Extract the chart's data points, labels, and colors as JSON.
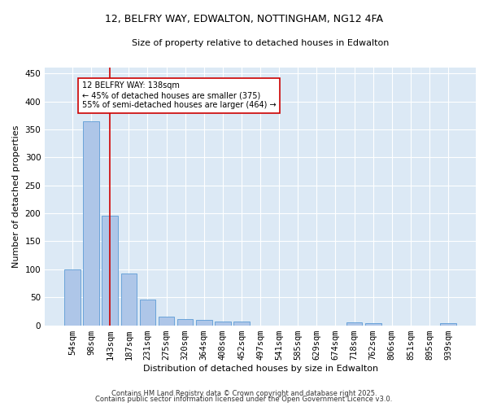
{
  "title": "12, BELFRY WAY, EDWALTON, NOTTINGHAM, NG12 4FA",
  "subtitle": "Size of property relative to detached houses in Edwalton",
  "xlabel": "Distribution of detached houses by size in Edwalton",
  "ylabel": "Number of detached properties",
  "categories": [
    "54sqm",
    "98sqm",
    "143sqm",
    "187sqm",
    "231sqm",
    "275sqm",
    "320sqm",
    "364sqm",
    "408sqm",
    "452sqm",
    "497sqm",
    "541sqm",
    "585sqm",
    "629sqm",
    "674sqm",
    "718sqm",
    "762sqm",
    "806sqm",
    "851sqm",
    "895sqm",
    "939sqm"
  ],
  "values": [
    100,
    365,
    195,
    93,
    46,
    15,
    11,
    10,
    7,
    6,
    0,
    0,
    0,
    0,
    0,
    5,
    4,
    0,
    0,
    0,
    4
  ],
  "bar_color": "#aec6e8",
  "bar_edge_color": "#5b9bd5",
  "vline_x": 2,
  "vline_color": "#cc0000",
  "annotation_line1": "12 BELFRY WAY: 138sqm",
  "annotation_line2": "← 45% of detached houses are smaller (375)",
  "annotation_line3": "55% of semi-detached houses are larger (464) →",
  "annotation_box_color": "#ffffff",
  "annotation_box_edge": "#cc0000",
  "ylim": [
    0,
    460
  ],
  "yticks": [
    0,
    50,
    100,
    150,
    200,
    250,
    300,
    350,
    400,
    450
  ],
  "background_color": "#dce9f5",
  "footer_line1": "Contains HM Land Registry data © Crown copyright and database right 2025.",
  "footer_line2": "Contains public sector information licensed under the Open Government Licence v3.0."
}
